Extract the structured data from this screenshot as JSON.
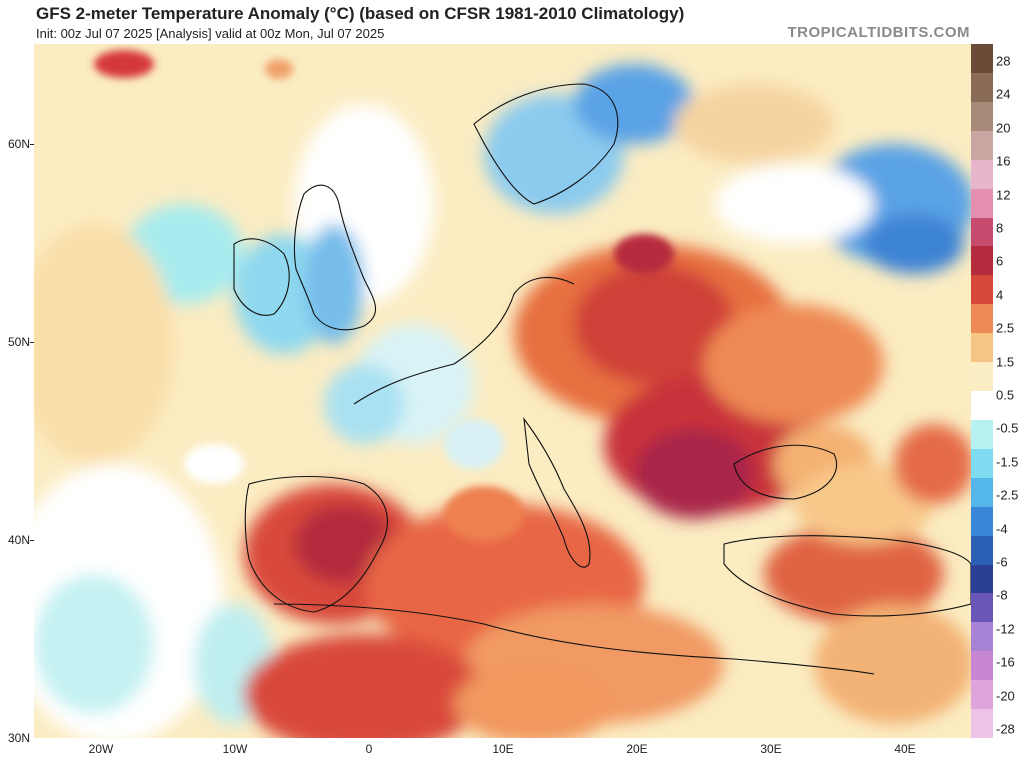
{
  "header": {
    "title": "GFS 2-meter Temperature Anomaly (°C) (based on CFSR 1981-2010 Climatology)",
    "subtitle": "Init: 00z Jul 07 2025   [Analysis]   valid at 00z Mon, Jul 07 2025",
    "brand": "TROPICALTIDBITS.COM"
  },
  "map": {
    "lat_labels": [
      "60N",
      "50N",
      "40N",
      "30N"
    ],
    "lon_labels": [
      "20W",
      "10W",
      "0",
      "10E",
      "20E",
      "30E",
      "40E"
    ]
  },
  "colorbar": {
    "labels": [
      "28",
      "24",
      "20",
      "16",
      "12",
      "8",
      "6",
      "4",
      "2.5",
      "1.5",
      "0.5",
      "-0.5",
      "-1.5",
      "-2.5",
      "-4",
      "-6",
      "-8",
      "-12",
      "-16",
      "-20",
      "-28"
    ],
    "colors": [
      "#6b4a37",
      "#8a6b55",
      "#a7897a",
      "#c9a6a2",
      "#e8b6cc",
      "#e58fb0",
      "#c74a6f",
      "#b32b3c",
      "#d5483a",
      "#ee8a55",
      "#f7c583",
      "#fbeec5",
      "#ffffff",
      "#b7f1f1",
      "#7fdcf0",
      "#55b6ec",
      "#3a86d6",
      "#2a5fb5",
      "#2a3f94",
      "#6a55b9",
      "#a882d5",
      "#c887d3",
      "#e0a4dd",
      "#efc2e8"
    ]
  },
  "colors": {
    "warm": "#e0553a",
    "hot": "#b3263a",
    "cool": "#5aa3e6",
    "land_border": "#111111"
  }
}
